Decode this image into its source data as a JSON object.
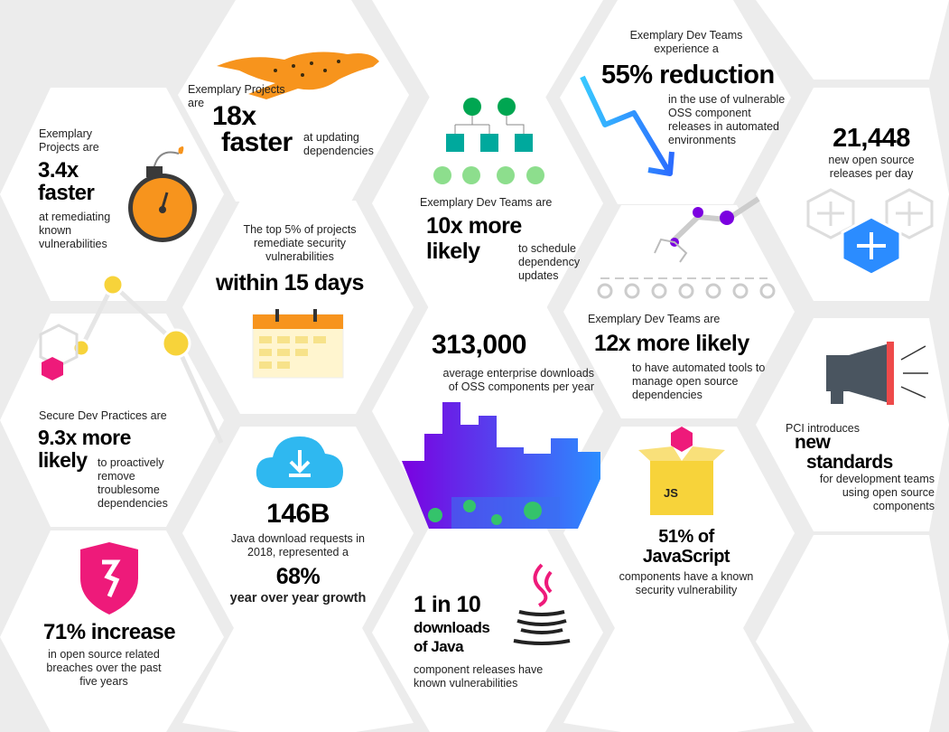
{
  "colors": {
    "background": "#ececec",
    "hex": "#ffffff",
    "orange": "#f7941d",
    "teal": "#00a99d",
    "green": "#00a651",
    "light_green": "#8dde8d",
    "purple": "#7b00e0",
    "blue": "#2b8cff",
    "magenta": "#ee1a7a",
    "yellow": "#f7d33a"
  },
  "cells": {
    "remediate": {
      "pre": "Exemplary Projects are",
      "big1": "3.4x",
      "big2": "faster",
      "post": "at remediating known vulnerabilities",
      "icon": "stopwatch-bomb-icon"
    },
    "updating": {
      "pre": "Exemplary Projects are",
      "big1": "18x",
      "big2": "faster",
      "post": "at updating dependencies",
      "icon": "cheetah-icon"
    },
    "schedule": {
      "pre": "Exemplary Dev Teams are",
      "big1": "10x more",
      "big2": "likely",
      "post": "to schedule dependency updates",
      "icon": "dependency-tree-icon"
    },
    "reduction": {
      "pre": "Exemplary Dev Teams experience a",
      "big": "55% reduction",
      "post": "in the use of vulnerable OSS component releases in automated environments",
      "icon": "down-arrow-icon"
    },
    "releases": {
      "big": "21,448",
      "post": "new open source releases per day",
      "icon": "hex-plus-icon"
    },
    "top5": {
      "pre": "The top 5% of projects remediate security vulnerabilities",
      "big": "within 15 days",
      "icon": "calendar-icon"
    },
    "troublesome": {
      "pre": "Secure Dev Practices are",
      "big1": "9.3x more",
      "big2": "likely",
      "post": "to proactively remove troublesome dependencies",
      "icon": "broken-chain-icon"
    },
    "downloads": {
      "big": "313,000",
      "post": "average enterprise downloads of OSS components per year",
      "icon": "city-skyline-icon"
    },
    "automated": {
      "pre": "Exemplary Dev Teams are",
      "big": "12x more likely",
      "post": "to have automated tools to manage open source dependencies",
      "icon": "robot-arm-icon"
    },
    "pci": {
      "pre": "PCI introduces",
      "big1": "new",
      "big2": "standards",
      "post": "for development teams using open source components",
      "icon": "megaphone-icon"
    },
    "java": {
      "big": "146B",
      "mid": "Java download requests in 2018, represented a",
      "big2": "68%",
      "post": "year over year growth",
      "icon": "cloud-download-icon"
    },
    "breaches": {
      "big": "71% increase",
      "post": "in open source related breaches over the past five years",
      "icon": "shield-icon"
    },
    "java_vuln": {
      "big1": "1 in 10",
      "big2": "downloads",
      "big3": "of Java",
      "post": "component releases have known vulnerabilities",
      "icon": "java-cup-icon"
    },
    "js": {
      "big1": "51% of",
      "big2": "JavaScript",
      "post": "components have a known security vulnerability",
      "icon": "js-box-icon",
      "box_label": "JS"
    }
  }
}
